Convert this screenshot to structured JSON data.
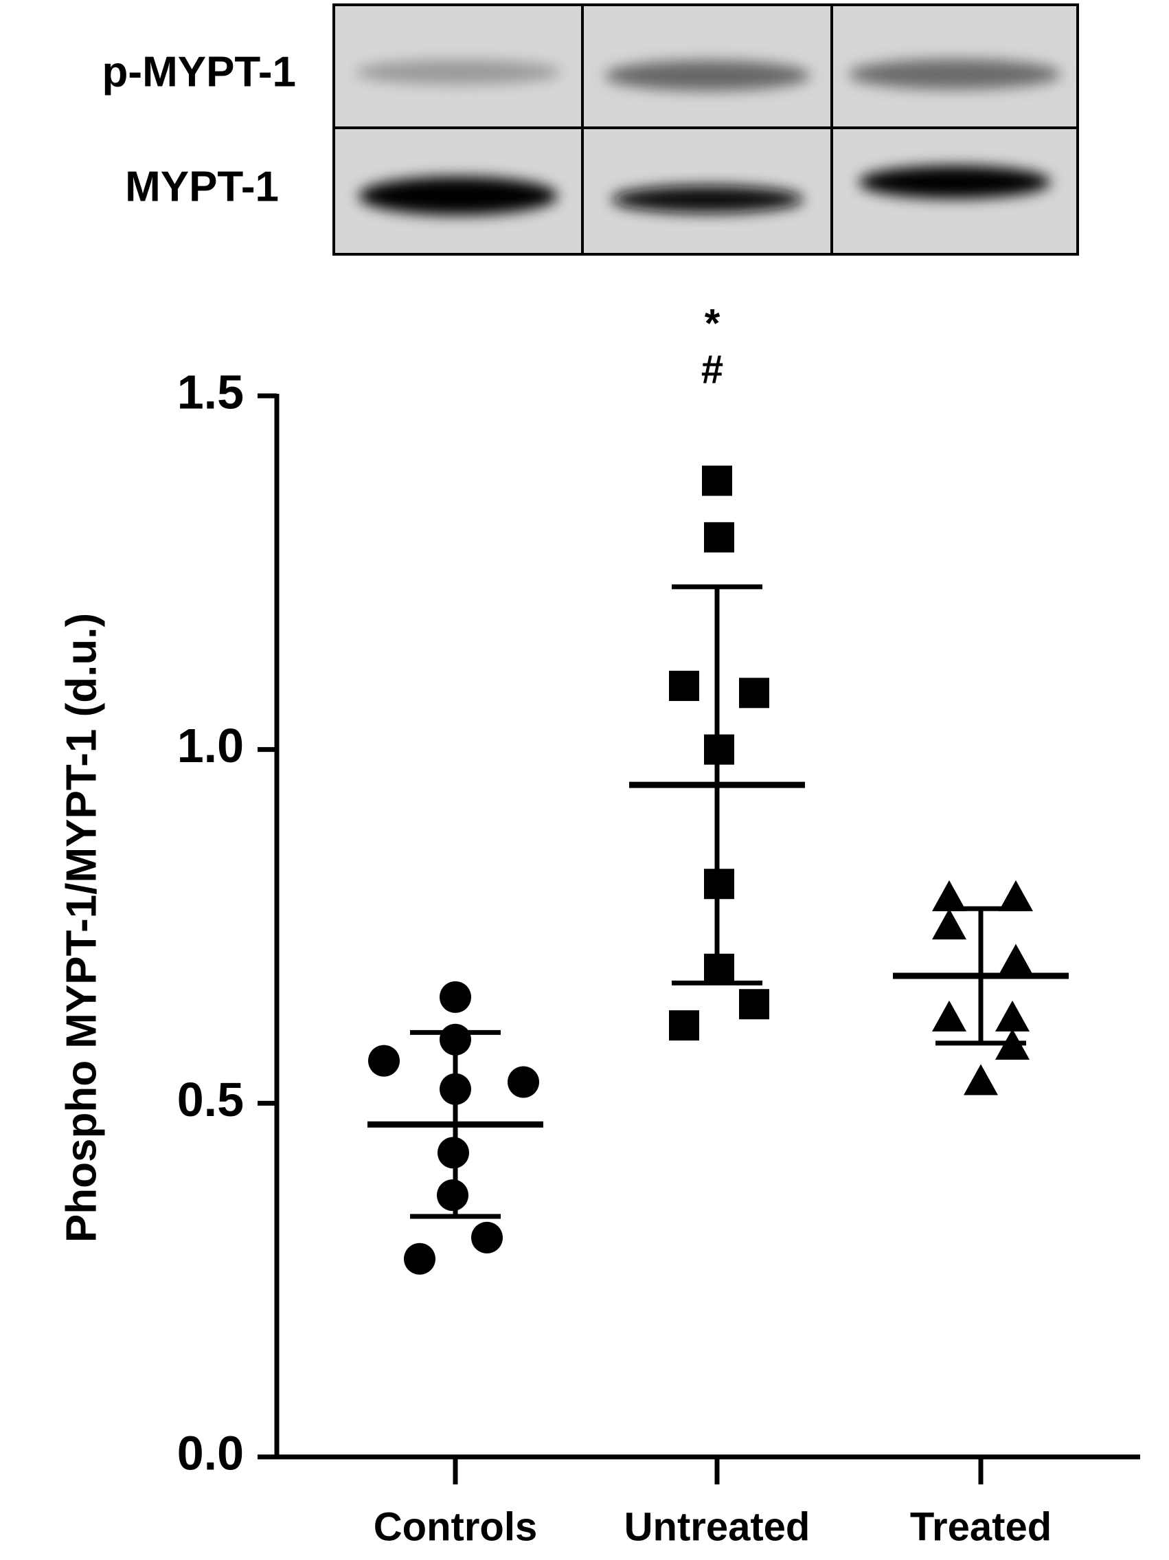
{
  "chart_data": {
    "type": "scatter",
    "blot_labels": [
      "p-MYPT-1",
      "MYPT-1"
    ],
    "y_label": "Phospho MYPT-1/MYPT-1 (d.u.)",
    "categories": [
      "Controls",
      "Untreated",
      "Treated"
    ],
    "annotations": [
      "*",
      "#"
    ],
    "ylim": [
      0,
      1.5
    ],
    "yticks": [
      {
        "value": 0,
        "label": "0.0"
      },
      {
        "value": 0.5,
        "label": "0.5"
      },
      {
        "value": 1,
        "label": "1.0"
      },
      {
        "value": 1.5,
        "label": "1.5"
      }
    ],
    "series": [
      {
        "name": "Controls",
        "color": "#000000",
        "marker": "circle",
        "values": [
          0.65,
          0.59,
          0.56,
          0.53,
          0.52,
          0.43,
          0.37,
          0.31,
          0.28
        ],
        "mean": 0.47,
        "sd": 0.13
      },
      {
        "name": "Untreated",
        "color": "#000000",
        "marker": "square",
        "values": [
          1.38,
          1.3,
          1.09,
          1.08,
          1.0,
          0.81,
          0.69,
          0.64,
          0.61
        ],
        "mean": 0.95,
        "sd": 0.28
      },
      {
        "name": "Treated",
        "color": "#000000",
        "marker": "triangle",
        "values": [
          0.79,
          0.79,
          0.75,
          0.7,
          0.62,
          0.62,
          0.58,
          0.53
        ],
        "mean": 0.68,
        "sd": 0.095
      }
    ]
  }
}
